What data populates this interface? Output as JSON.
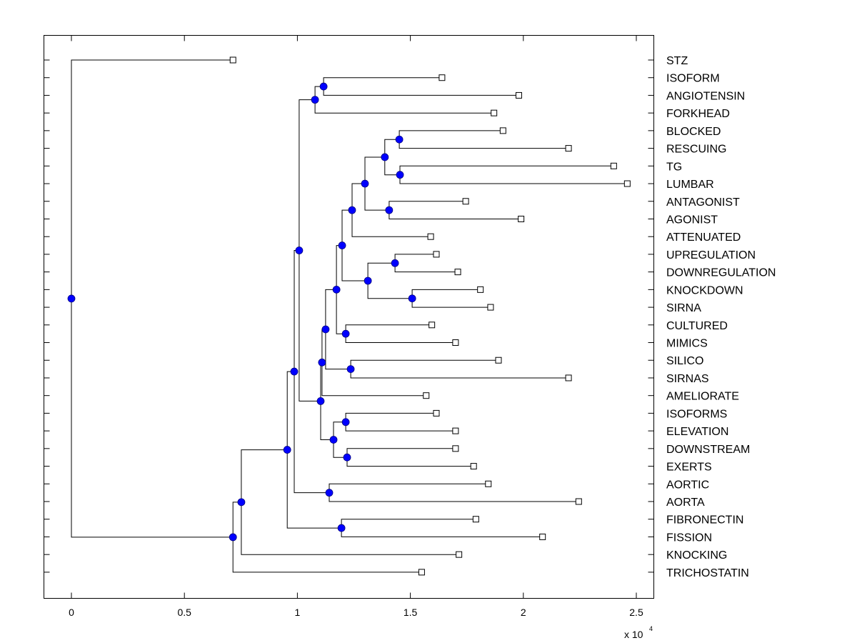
{
  "chart_data": {
    "type": "dendrogram",
    "title": "",
    "xlabel": "",
    "ylabel": "",
    "x_multiplier_label": "x 10",
    "x_multiplier_exponent": "4",
    "xlim": [
      -0.12,
      2.58
    ],
    "x_ticks": [
      0,
      0.5,
      1,
      1.5,
      2,
      2.5
    ],
    "x_tick_labels": [
      "0",
      "0.5",
      "1",
      "1.5",
      "2",
      "2.5"
    ],
    "grid": false,
    "colors": {
      "node_fill": "#0000ff",
      "node_edge": "#000080",
      "line": "#000000",
      "leaf_fill": "#ffffff"
    },
    "leaves": [
      {
        "name": "STZ",
        "x": 0.715
      },
      {
        "name": "ISOFORM",
        "x": 1.64
      },
      {
        "name": "ANGIOTENSIN",
        "x": 1.98
      },
      {
        "name": "FORKHEAD",
        "x": 1.87
      },
      {
        "name": "BLOCKED",
        "x": 1.91
      },
      {
        "name": "RESCUING",
        "x": 2.2
      },
      {
        "name": "TG",
        "x": 2.4
      },
      {
        "name": "LUMBAR",
        "x": 2.46
      },
      {
        "name": "ANTAGONIST",
        "x": 1.745
      },
      {
        "name": "AGONIST",
        "x": 1.99
      },
      {
        "name": "ATTENUATED",
        "x": 1.59
      },
      {
        "name": "UPREGULATION",
        "x": 1.615
      },
      {
        "name": "DOWNREGULATION",
        "x": 1.71
      },
      {
        "name": "KNOCKDOWN",
        "x": 1.81
      },
      {
        "name": "SIRNA",
        "x": 1.855
      },
      {
        "name": "CULTURED",
        "x": 1.595
      },
      {
        "name": "MIMICS",
        "x": 1.7
      },
      {
        "name": "SILICO",
        "x": 1.89
      },
      {
        "name": "SIRNAS",
        "x": 2.2
      },
      {
        "name": "AMELIORATE",
        "x": 1.57
      },
      {
        "name": "ISOFORMS",
        "x": 1.615
      },
      {
        "name": "ELEVATION",
        "x": 1.7
      },
      {
        "name": "DOWNSTREAM",
        "x": 1.7
      },
      {
        "name": "EXERTS",
        "x": 1.78
      },
      {
        "name": "AORTIC",
        "x": 1.845
      },
      {
        "name": "AORTA",
        "x": 2.245
      },
      {
        "name": "FIBRONECTIN",
        "x": 1.79
      },
      {
        "name": "FISSION",
        "x": 2.085
      },
      {
        "name": "KNOCKING",
        "x": 1.715
      },
      {
        "name": "TRICHOSTATIN",
        "x": 1.55
      }
    ],
    "nodes": [
      {
        "id": "root",
        "x": 0.0,
        "children": [
          "L:STZ",
          "A"
        ]
      },
      {
        "id": "A",
        "x": 0.715,
        "children": [
          "B",
          "L:TRICHOSTATIN"
        ]
      },
      {
        "id": "B",
        "x": 0.752,
        "children": [
          "C",
          "L:KNOCKING"
        ]
      },
      {
        "id": "C",
        "x": 0.955,
        "children": [
          "D",
          "E"
        ]
      },
      {
        "id": "E",
        "x": 1.195,
        "children": [
          "L:FIBRONECTIN",
          "L:FISSION"
        ]
      },
      {
        "id": "D",
        "x": 0.986,
        "children": [
          "F",
          "G"
        ]
      },
      {
        "id": "G",
        "x": 1.141,
        "children": [
          "L:AORTIC",
          "L:AORTA"
        ]
      },
      {
        "id": "F",
        "x": 1.008,
        "children": [
          "H",
          "I"
        ]
      },
      {
        "id": "H",
        "x": 1.078,
        "children": [
          "J",
          "L:FORKHEAD"
        ]
      },
      {
        "id": "J",
        "x": 1.116,
        "children": [
          "L:ISOFORM",
          "L:ANGIOTENSIN"
        ]
      },
      {
        "id": "I",
        "x": 1.103,
        "children": [
          "K",
          "Lb"
        ]
      },
      {
        "id": "Lb",
        "x": 1.16,
        "children": [
          "M",
          "N"
        ]
      },
      {
        "id": "M",
        "x": 1.214,
        "children": [
          "L:ISOFORMS",
          "L:ELEVATION"
        ]
      },
      {
        "id": "N",
        "x": 1.22,
        "children": [
          "L:DOWNSTREAM",
          "L:EXERTS"
        ]
      },
      {
        "id": "K",
        "x": 1.109,
        "children": [
          "P",
          "L:AMELIORATE"
        ]
      },
      {
        "id": "P",
        "x": 1.125,
        "children": [
          "Q",
          "R"
        ]
      },
      {
        "id": "R",
        "x": 1.236,
        "children": [
          "L:SILICO",
          "L:SIRNAS"
        ]
      },
      {
        "id": "Q",
        "x": 1.173,
        "children": [
          "S",
          "T"
        ]
      },
      {
        "id": "T",
        "x": 1.214,
        "children": [
          "L:CULTURED",
          "L:MIMICS"
        ]
      },
      {
        "id": "S",
        "x": 1.198,
        "children": [
          "U",
          "V"
        ]
      },
      {
        "id": "V",
        "x": 1.312,
        "children": [
          "W",
          "X"
        ]
      },
      {
        "id": "W",
        "x": 1.432,
        "children": [
          "L:UPREGULATION",
          "L:DOWNREGULATION"
        ]
      },
      {
        "id": "X",
        "x": 1.508,
        "children": [
          "L:KNOCKDOWN",
          "L:SIRNA"
        ]
      },
      {
        "id": "U",
        "x": 1.242,
        "children": [
          "Y",
          "L:ATTENUATED"
        ]
      },
      {
        "id": "Y",
        "x": 1.299,
        "children": [
          "Z",
          "AA"
        ]
      },
      {
        "id": "AA",
        "x": 1.406,
        "children": [
          "L:ANTAGONIST",
          "L:AGONIST"
        ]
      },
      {
        "id": "Z",
        "x": 1.387,
        "children": [
          "BB",
          "CC"
        ]
      },
      {
        "id": "BB",
        "x": 1.451,
        "children": [
          "L:BLOCKED",
          "L:RESCUING"
        ]
      },
      {
        "id": "CC",
        "x": 1.454,
        "children": [
          "L:TG",
          "L:LUMBAR"
        ]
      }
    ]
  }
}
